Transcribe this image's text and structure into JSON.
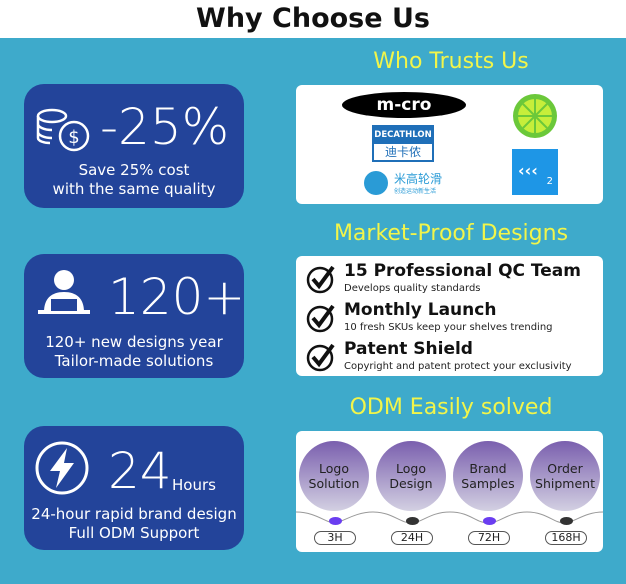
{
  "title": "Why Choose Us",
  "cards": [
    {
      "value": "-25%",
      "line1": "Save 25% cost",
      "line2": "with the same quality",
      "icon": "coins-dollar-icon"
    },
    {
      "value": "120+",
      "line1": "120+ new designs year",
      "line2": "Tailor-made solutions",
      "icon": "person-laptop-icon"
    },
    {
      "value": "24",
      "unit": "Hours",
      "line1": "24-hour rapid brand design",
      "line2": "Full ODM Support",
      "icon": "lightning-icon"
    }
  ],
  "trusts": {
    "heading": "Who Trusts Us",
    "logos": {
      "micro": "m-cro",
      "decathlon_en": "DECATHLON",
      "decathlon_cn": "迪卡侬",
      "mg_cn": "米高轮滑",
      "mg_sub": "创造运动新生活",
      "kk": "2"
    }
  },
  "market": {
    "heading": "Market-Proof Designs",
    "items": [
      {
        "title": "15 Professional QC Team",
        "desc": "Develops quality standards"
      },
      {
        "title": "Monthly Launch",
        "desc": "10 fresh SKUs keep your shelves trending"
      },
      {
        "title": "Patent Shield",
        "desc": "Copyright and patent protect your exclusivity"
      }
    ]
  },
  "odm": {
    "heading": "ODM Easily solved",
    "steps": [
      {
        "l1": "Logo",
        "l2": "Solution",
        "time": "3H",
        "dot": "#6a3df0"
      },
      {
        "l1": "Logo",
        "l2": "Design",
        "time": "24H",
        "dot": "#333333"
      },
      {
        "l1": "Brand",
        "l2": "Samples",
        "time": "72H",
        "dot": "#6a3df0"
      },
      {
        "l1": "Order",
        "l2": "Shipment",
        "time": "168H",
        "dot": "#333333"
      }
    ]
  },
  "colors": {
    "background": "#3eaacb",
    "card": "#23449a",
    "heading": "#f2f54a"
  }
}
